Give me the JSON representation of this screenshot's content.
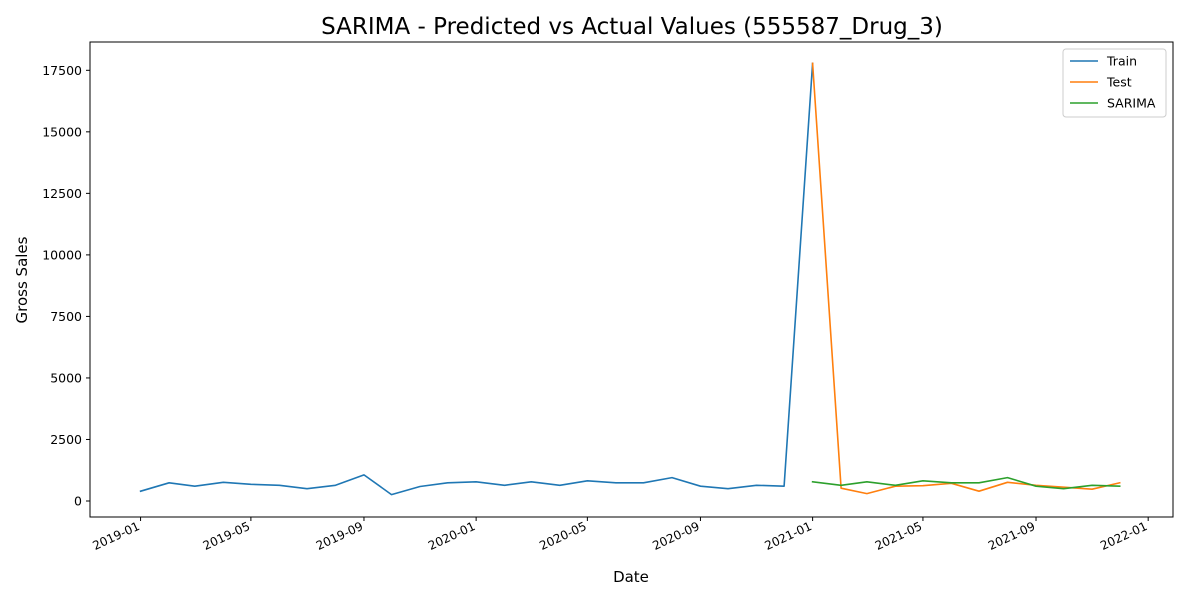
{
  "chart_data": {
    "type": "line",
    "title": "SARIMA - Predicted vs Actual Values (555587_Drug_3)",
    "xlabel": "Date",
    "ylabel": "Gross Sales",
    "xlim": [
      "2018-11-07",
      "2022-01-28"
    ],
    "ylim": [
      -650,
      18650
    ],
    "x_ticks": [
      "2019-01",
      "2019-05",
      "2019-09",
      "2020-01",
      "2020-05",
      "2020-09",
      "2021-01",
      "2021-05",
      "2021-09",
      "2022-01"
    ],
    "y_ticks": [
      0,
      2500,
      5000,
      7500,
      10000,
      12500,
      15000,
      17500
    ],
    "grid": false,
    "legend_position": "upper right",
    "series": [
      {
        "name": "Train",
        "color": "#1f77b4",
        "x": [
          "2019-01-01",
          "2019-02-01",
          "2019-03-01",
          "2019-04-01",
          "2019-05-01",
          "2019-06-01",
          "2019-07-01",
          "2019-08-01",
          "2019-09-01",
          "2019-10-01",
          "2019-11-01",
          "2019-12-01",
          "2020-01-01",
          "2020-02-01",
          "2020-03-01",
          "2020-04-01",
          "2020-05-01",
          "2020-06-01",
          "2020-07-01",
          "2020-08-01",
          "2020-09-01",
          "2020-10-01",
          "2020-11-01",
          "2020-12-01",
          "2021-01-01"
        ],
        "y": [
          400,
          740,
          600,
          760,
          680,
          640,
          500,
          640,
          1060,
          260,
          590,
          740,
          780,
          640,
          780,
          640,
          820,
          740,
          740,
          950,
          600,
          500,
          640,
          600,
          17780
        ]
      },
      {
        "name": "Test",
        "color": "#ff7f0e",
        "x": [
          "2021-01-01",
          "2021-02-01",
          "2021-03-01",
          "2021-04-01",
          "2021-05-01",
          "2021-06-01",
          "2021-07-01",
          "2021-08-01",
          "2021-09-01",
          "2021-10-01",
          "2021-11-01",
          "2021-12-01"
        ],
        "y": [
          17780,
          520,
          300,
          600,
          620,
          720,
          400,
          760,
          640,
          560,
          480,
          740
        ]
      },
      {
        "name": "SARIMA",
        "color": "#2ca02c",
        "x": [
          "2021-01-01",
          "2021-02-01",
          "2021-03-01",
          "2021-04-01",
          "2021-05-01",
          "2021-06-01",
          "2021-07-01",
          "2021-08-01",
          "2021-09-01",
          "2021-10-01",
          "2021-11-01",
          "2021-12-01"
        ],
        "y": [
          780,
          640,
          780,
          640,
          820,
          740,
          740,
          950,
          600,
          500,
          640,
          600
        ]
      }
    ]
  }
}
